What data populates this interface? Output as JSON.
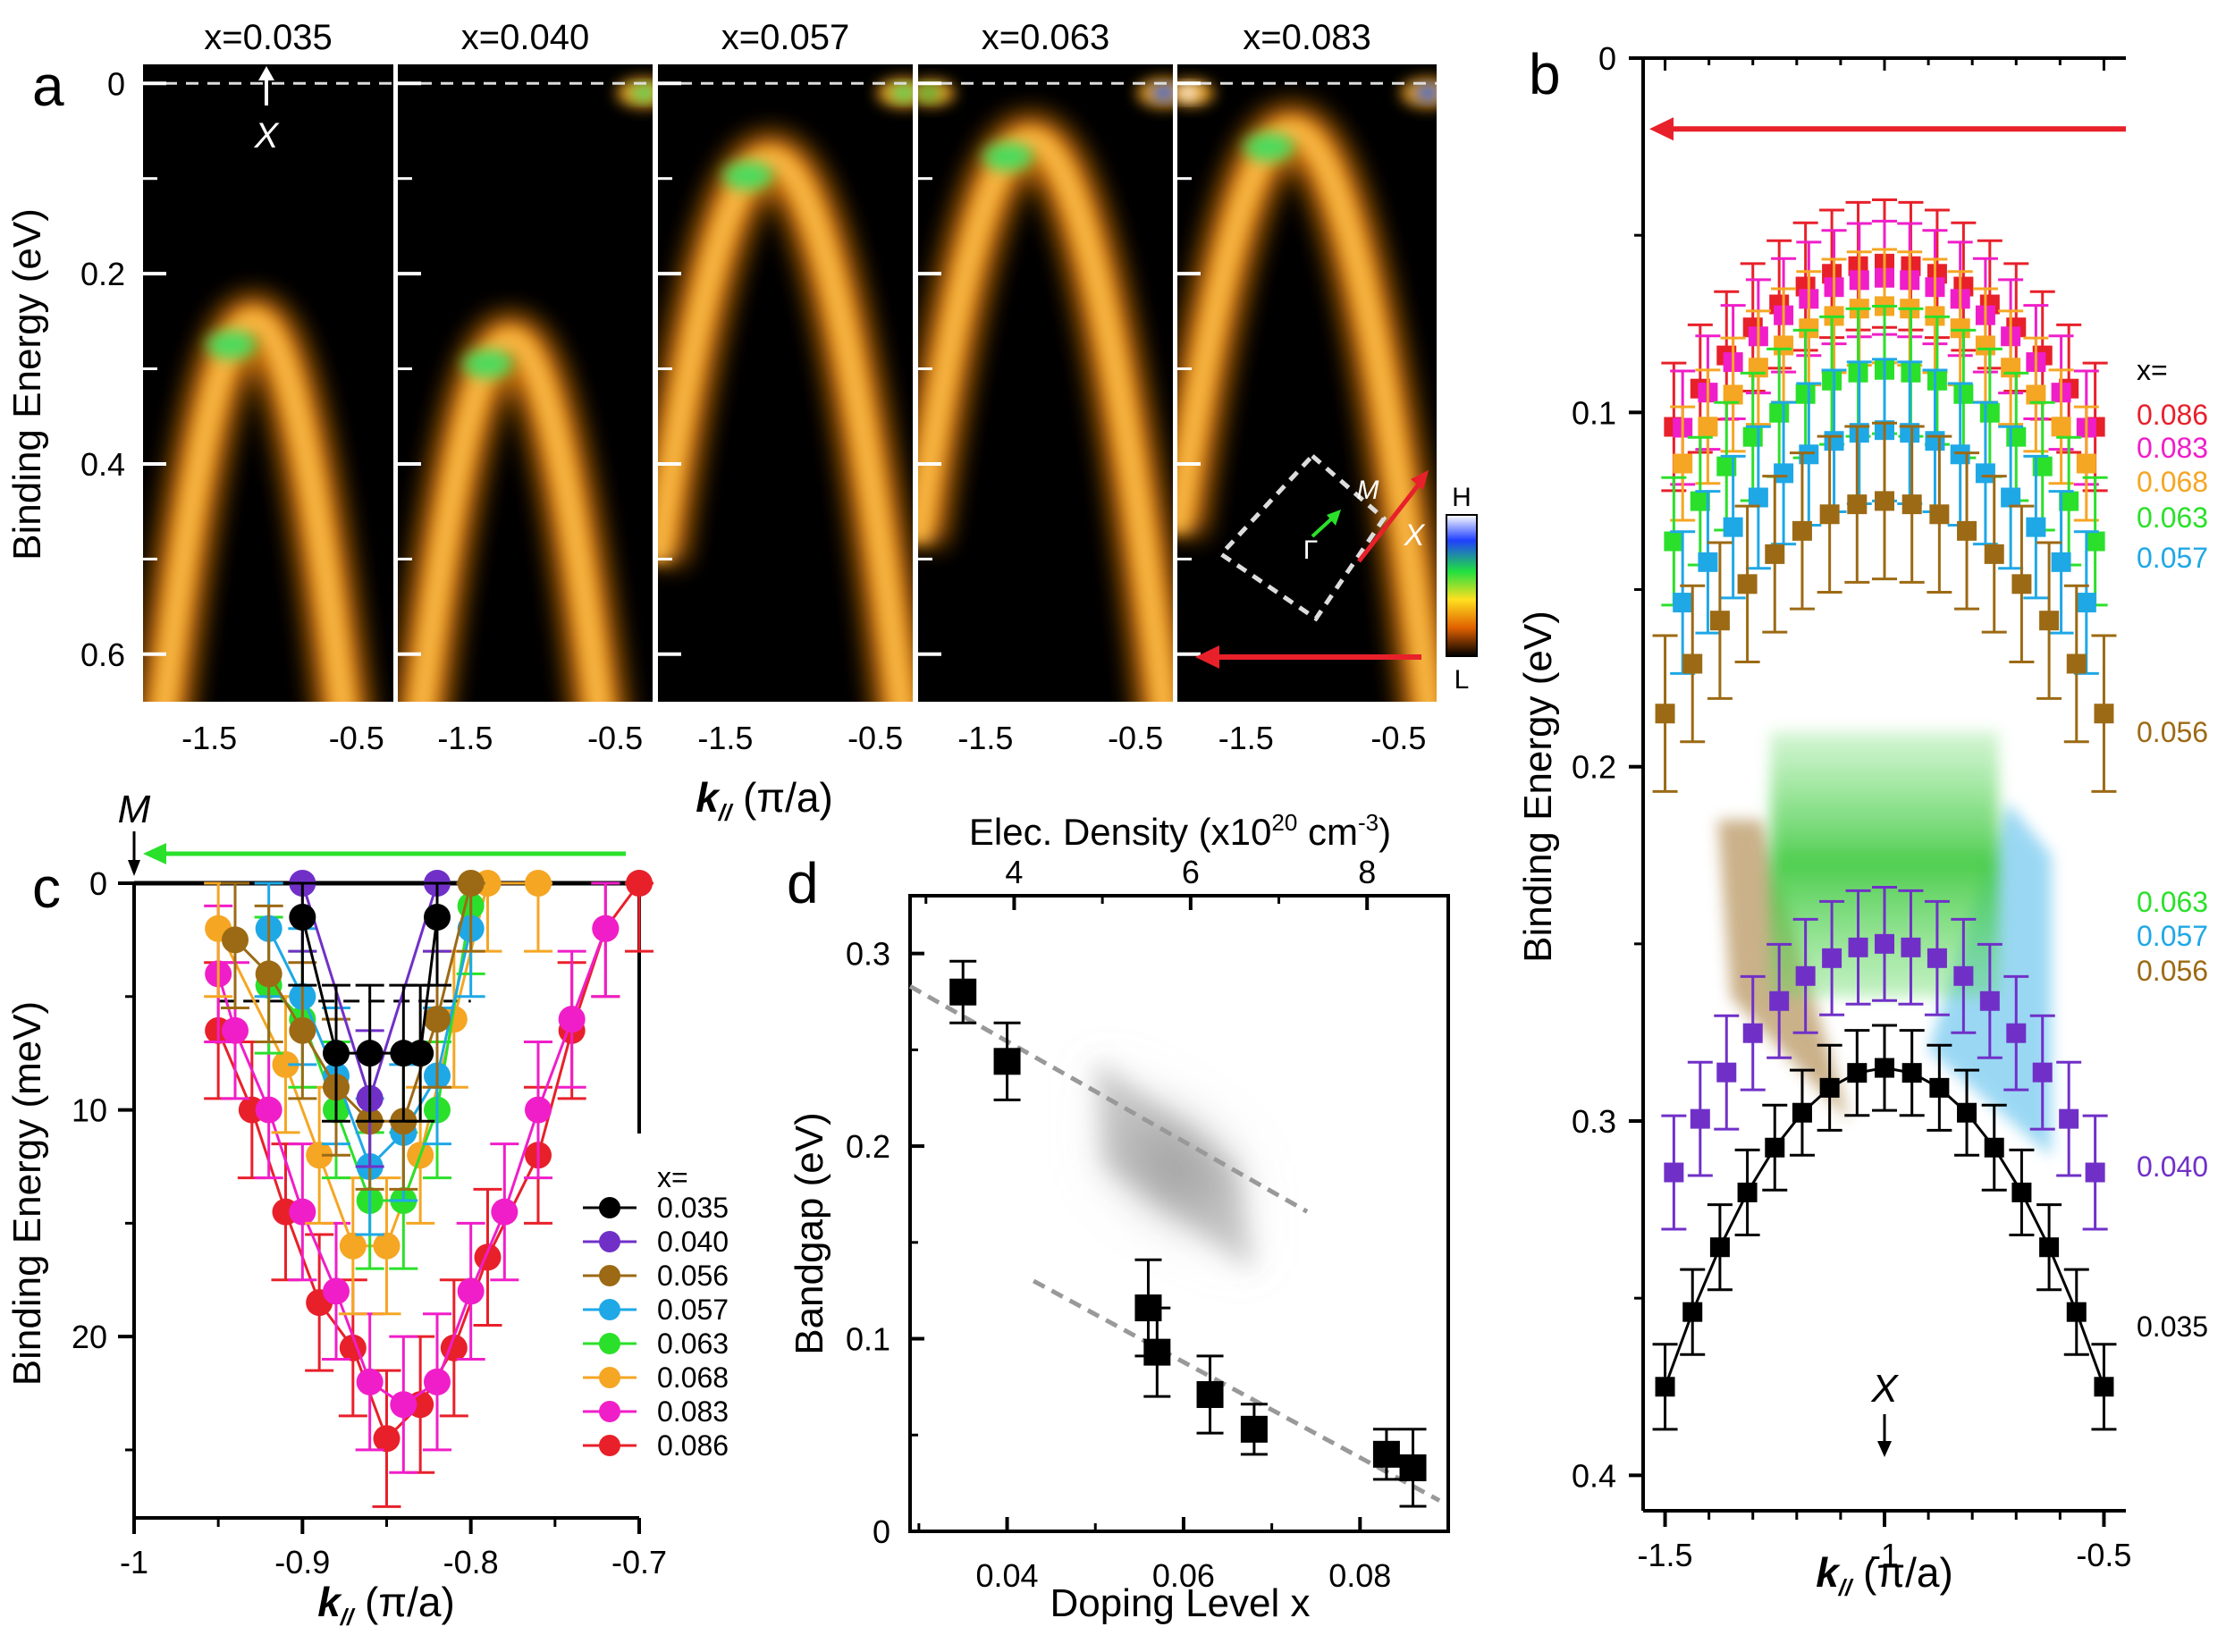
{
  "chart_data": [
    {
      "panel": "a",
      "type": "heatmap",
      "description": "ARPES intensity maps near the X point for five doping levels",
      "subplot_titles": [
        "x=0.035",
        "x=0.040",
        "x=0.057",
        "x=0.063",
        "x=0.083"
      ],
      "ylabel": "Binding Energy (eV)",
      "xlabel_main": "k",
      "xlabel_sub": "//",
      "xlabel_unit": " (π/a)",
      "ylim": [
        0.65,
        -0.02
      ],
      "xlim": [
        -1.95,
        -0.25
      ],
      "yticks": [
        0,
        0.2,
        0.4,
        0.6
      ],
      "ytick_labels": [
        "0",
        "0.2",
        "0.4",
        "0.6"
      ],
      "xticks": [
        -1.5,
        -0.5
      ],
      "xtick_labels": [
        "-1.5",
        "-0.5"
      ],
      "band_top_eV": [
        0.25,
        0.27,
        0.08,
        0.06,
        0.05
      ],
      "x_point_label": "X",
      "colorbar": {
        "high": "H",
        "low": "L"
      },
      "inset": {
        "gamma": "Γ",
        "m": "M",
        "x": "X"
      }
    },
    {
      "panel": "b",
      "type": "scatter",
      "xlabel_main": "k",
      "xlabel_sub": "//",
      "xlabel_unit": " (π/a)",
      "ylabel": "Binding Energy (eV)",
      "xlim": [
        -1.55,
        -0.45
      ],
      "ylim": [
        0.41,
        0
      ],
      "xticks": [
        -1.5,
        -1,
        -0.5
      ],
      "xtick_labels": [
        "-1.5",
        "-1",
        "-0.5"
      ],
      "yticks": [
        0,
        0.1,
        0.2,
        0.3,
        0.4
      ],
      "ytick_labels": [
        "0",
        "0.1",
        "0.2",
        "0.3",
        "0.4"
      ],
      "legend_title": "x=",
      "x_point_label": "X",
      "series": [
        {
          "name": "0.086",
          "color": "#e8202a",
          "top": 0.058,
          "curv": 0.2,
          "x_min": -1.48,
          "x_max": -0.52,
          "err": 0.018
        },
        {
          "name": "0.083",
          "color": "#f01ec8",
          "top": 0.062,
          "curv": 0.2,
          "x_min": -1.46,
          "x_max": -0.54,
          "err": 0.016
        },
        {
          "name": "0.068",
          "color": "#f5a623",
          "top": 0.07,
          "curv": 0.21,
          "x_min": -1.46,
          "x_max": -0.54,
          "err": 0.016
        },
        {
          "name": "0.063",
          "color": "#2be02b",
          "top": 0.088,
          "curv": 0.21,
          "x_min": -1.48,
          "x_max": -0.52,
          "err": 0.018
        },
        {
          "name": "0.057",
          "color": "#1fa8e6",
          "top": 0.105,
          "curv": 0.23,
          "x_min": -1.46,
          "x_max": -0.54,
          "err": 0.02
        },
        {
          "name": "0.056",
          "color": "#9c6a14",
          "top": 0.125,
          "curv": 0.24,
          "x_min": -1.5,
          "x_max": -0.5,
          "err": 0.022
        },
        {
          "name": "0.040",
          "color": "#7030c8",
          "top": 0.25,
          "curv": 0.28,
          "x_min": -1.48,
          "x_max": -0.52,
          "err": 0.016
        },
        {
          "name": "0.035",
          "color": "#000000",
          "top": 0.285,
          "curv": 0.36,
          "x_min": -1.5,
          "x_max": -0.5,
          "err": 0.012
        }
      ],
      "shaded_labels": [
        "0.063",
        "0.057",
        "0.056"
      ]
    },
    {
      "panel": "c",
      "type": "line",
      "xlabel_main": "k",
      "xlabel_sub": "//",
      "xlabel_unit": " (π/a)",
      "ylabel": "Binding Energy (meV)",
      "xlim": [
        -1.0,
        -0.7
      ],
      "ylim": [
        28,
        0
      ],
      "xticks": [
        -1,
        -0.9,
        -0.8,
        -0.7
      ],
      "xtick_labels": [
        "-1",
        "-0.9",
        "-0.8",
        "-0.7"
      ],
      "yticks": [
        0,
        10,
        20
      ],
      "ytick_labels": [
        "0",
        "10",
        "20"
      ],
      "m_point_label": "M",
      "legend_title": "x=",
      "series": [
        {
          "name": "0.035",
          "color": "#000000",
          "x": [
            -0.9,
            -0.88,
            -0.86,
            -0.84,
            -0.83,
            -0.82
          ],
          "y": [
            1.5,
            7.5,
            7.5,
            7.5,
            7.5,
            1.5
          ],
          "err": 3.0
        },
        {
          "name": "0.040",
          "color": "#7030c8",
          "x": [
            -0.9,
            -0.86,
            -0.82
          ],
          "y": [
            0.0,
            9.5,
            0.0
          ],
          "err": 3.0
        },
        {
          "name": "0.056",
          "color": "#9c6a14",
          "x": [
            -0.94,
            -0.92,
            -0.9,
            -0.88,
            -0.86,
            -0.84,
            -0.82,
            -0.8
          ],
          "y": [
            2.5,
            4.0,
            6.5,
            9.0,
            10.5,
            10.5,
            6.0,
            0.0
          ],
          "err": 3.0
        },
        {
          "name": "0.057",
          "color": "#1fa8e6",
          "x": [
            -0.92,
            -0.9,
            -0.88,
            -0.86,
            -0.84,
            -0.82,
            -0.8
          ],
          "y": [
            2.0,
            5.0,
            8.5,
            12.5,
            11.0,
            8.5,
            2.0
          ],
          "err": 3.0
        },
        {
          "name": "0.063",
          "color": "#2be02b",
          "x": [
            -0.92,
            -0.9,
            -0.88,
            -0.86,
            -0.84,
            -0.82,
            -0.8
          ],
          "y": [
            4.5,
            6.0,
            10.0,
            14.0,
            14.0,
            10.0,
            1.0
          ],
          "err": 3.0
        },
        {
          "name": "0.068",
          "color": "#f5a623",
          "x": [
            -0.95,
            -0.91,
            -0.89,
            -0.87,
            -0.85,
            -0.83,
            -0.81,
            -0.79,
            -0.76
          ],
          "y": [
            2.0,
            8.0,
            12.0,
            16.0,
            16.0,
            12.0,
            6.0,
            0.0,
            0.0
          ],
          "err": 3.0
        },
        {
          "name": "0.083",
          "color": "#f01ec8",
          "x": [
            -0.95,
            -0.94,
            -0.92,
            -0.9,
            -0.88,
            -0.86,
            -0.84,
            -0.82,
            -0.8,
            -0.78,
            -0.76,
            -0.74,
            -0.72
          ],
          "y": [
            4.0,
            6.5,
            10.0,
            14.5,
            18.0,
            22.0,
            23.0,
            22.0,
            18.0,
            14.5,
            10.0,
            6.0,
            2.0
          ],
          "err": 3.0
        },
        {
          "name": "0.086",
          "color": "#e8202a",
          "x": [
            -0.95,
            -0.93,
            -0.91,
            -0.89,
            -0.87,
            -0.85,
            -0.83,
            -0.81,
            -0.79,
            -0.76,
            -0.74,
            -0.72,
            -0.7
          ],
          "y": [
            6.5,
            10.0,
            14.5,
            18.5,
            20.5,
            24.5,
            23.0,
            20.5,
            16.5,
            12.0,
            6.5,
            2.0,
            0.0
          ],
          "err": 3.0
        }
      ]
    },
    {
      "panel": "d",
      "type": "scatter",
      "xlabel": "Doping Level x",
      "ylabel": "Bandgap (eV)",
      "top_xlabel": "Elec. Density (x10",
      "top_xlabel_exp": "20",
      "top_xlabel_unit": " cm",
      "top_xlabel_exp2": "-3",
      "top_xlabel_close": ")",
      "xlim": [
        0.029,
        0.09
      ],
      "ylim": [
        0,
        0.33
      ],
      "xticks": [
        0.04,
        0.06,
        0.08
      ],
      "xtick_labels": [
        "0.04",
        "0.06",
        "0.08"
      ],
      "yticks": [
        0,
        0.1,
        0.2,
        0.3
      ],
      "ytick_labels": [
        "0",
        "0.1",
        "0.2",
        "0.3"
      ],
      "top_xticks": [
        4,
        6,
        8
      ],
      "top_xtick_labels": [
        "4",
        "6",
        "8"
      ],
      "x": [
        0.035,
        0.04,
        0.056,
        0.057,
        0.063,
        0.068,
        0.083,
        0.086
      ],
      "y": [
        0.28,
        0.244,
        0.116,
        0.093,
        0.071,
        0.053,
        0.04,
        0.033
      ],
      "err": [
        0.016,
        0.02,
        0.025,
        0.023,
        0.02,
        0.013,
        0.013,
        0.02
      ],
      "fit_lines": [
        {
          "x": [
            0.029,
            0.074
          ],
          "y": [
            0.283,
            0.166
          ]
        },
        {
          "x": [
            0.043,
            0.089
          ],
          "y": [
            0.13,
            0.016
          ]
        }
      ]
    }
  ]
}
